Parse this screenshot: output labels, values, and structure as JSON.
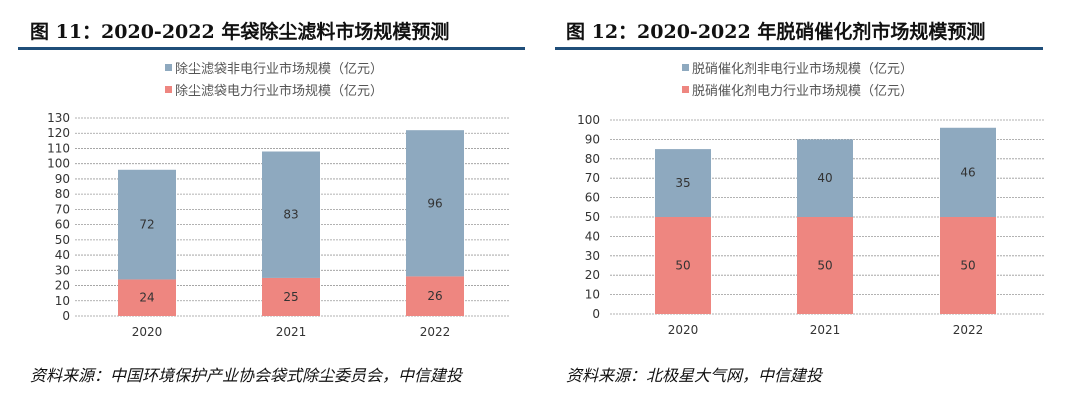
{
  "charts": [
    {
      "heading": "图 11：2020-2022 年袋除尘滤料市场规模预测",
      "source": "资料来源：中国环境保护产业协会袋式除尘委员会，中信建投"
    },
    {
      "heading": "图 12：2020-2022 年脱硝催化剂市场规模预测",
      "source": "资料来源：北极星大气网，中信建投"
    }
  ],
  "chart_data": [
    {
      "type": "bar",
      "stacked": true,
      "categories": [
        "2020",
        "2021",
        "2022"
      ],
      "ylim": [
        0,
        130
      ],
      "yticks": [
        0,
        10,
        20,
        30,
        40,
        50,
        60,
        70,
        80,
        90,
        100,
        110,
        120,
        130
      ],
      "grid": true,
      "legend_position": "top",
      "series": [
        {
          "name": "除尘滤袋非电行业市场规模（亿元）",
          "values": [
            72,
            83,
            96
          ],
          "color": "#8ea9bf"
        },
        {
          "name": "除尘滤袋电力行业市场规模（亿元）",
          "values": [
            24,
            25,
            26
          ],
          "color": "#ee8680"
        }
      ]
    },
    {
      "type": "bar",
      "stacked": true,
      "categories": [
        "2020",
        "2021",
        "2022"
      ],
      "ylim": [
        0,
        100
      ],
      "yticks": [
        0,
        10,
        20,
        30,
        40,
        50,
        60,
        70,
        80,
        90,
        100
      ],
      "grid": true,
      "legend_position": "top",
      "series": [
        {
          "name": "脱硝催化剂非电行业市场规模（亿元）",
          "values": [
            35,
            40,
            46
          ],
          "color": "#8ea9bf"
        },
        {
          "name": "脱硝催化剂电力行业市场规模（亿元）",
          "values": [
            50,
            50,
            50
          ],
          "color": "#ee8680"
        }
      ]
    }
  ]
}
